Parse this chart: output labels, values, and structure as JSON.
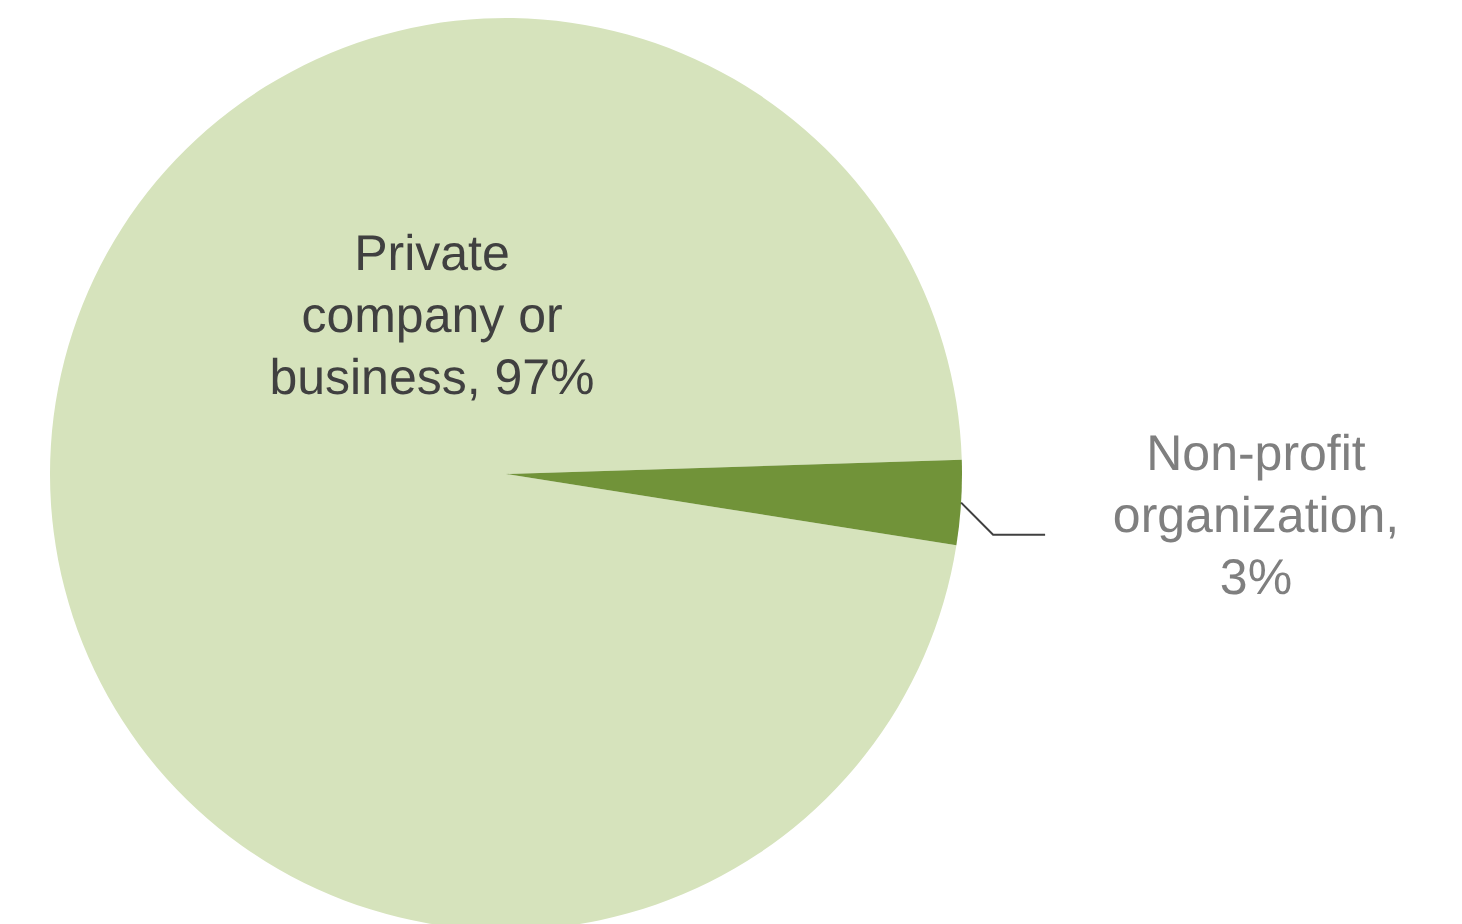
{
  "chart_data": {
    "type": "pie",
    "categories": [
      "Private company or business, 97%",
      "Non-profit organization, 3%"
    ],
    "values": [
      97,
      3
    ],
    "colors": [
      "#d6e3bc",
      "#719339"
    ]
  }
}
